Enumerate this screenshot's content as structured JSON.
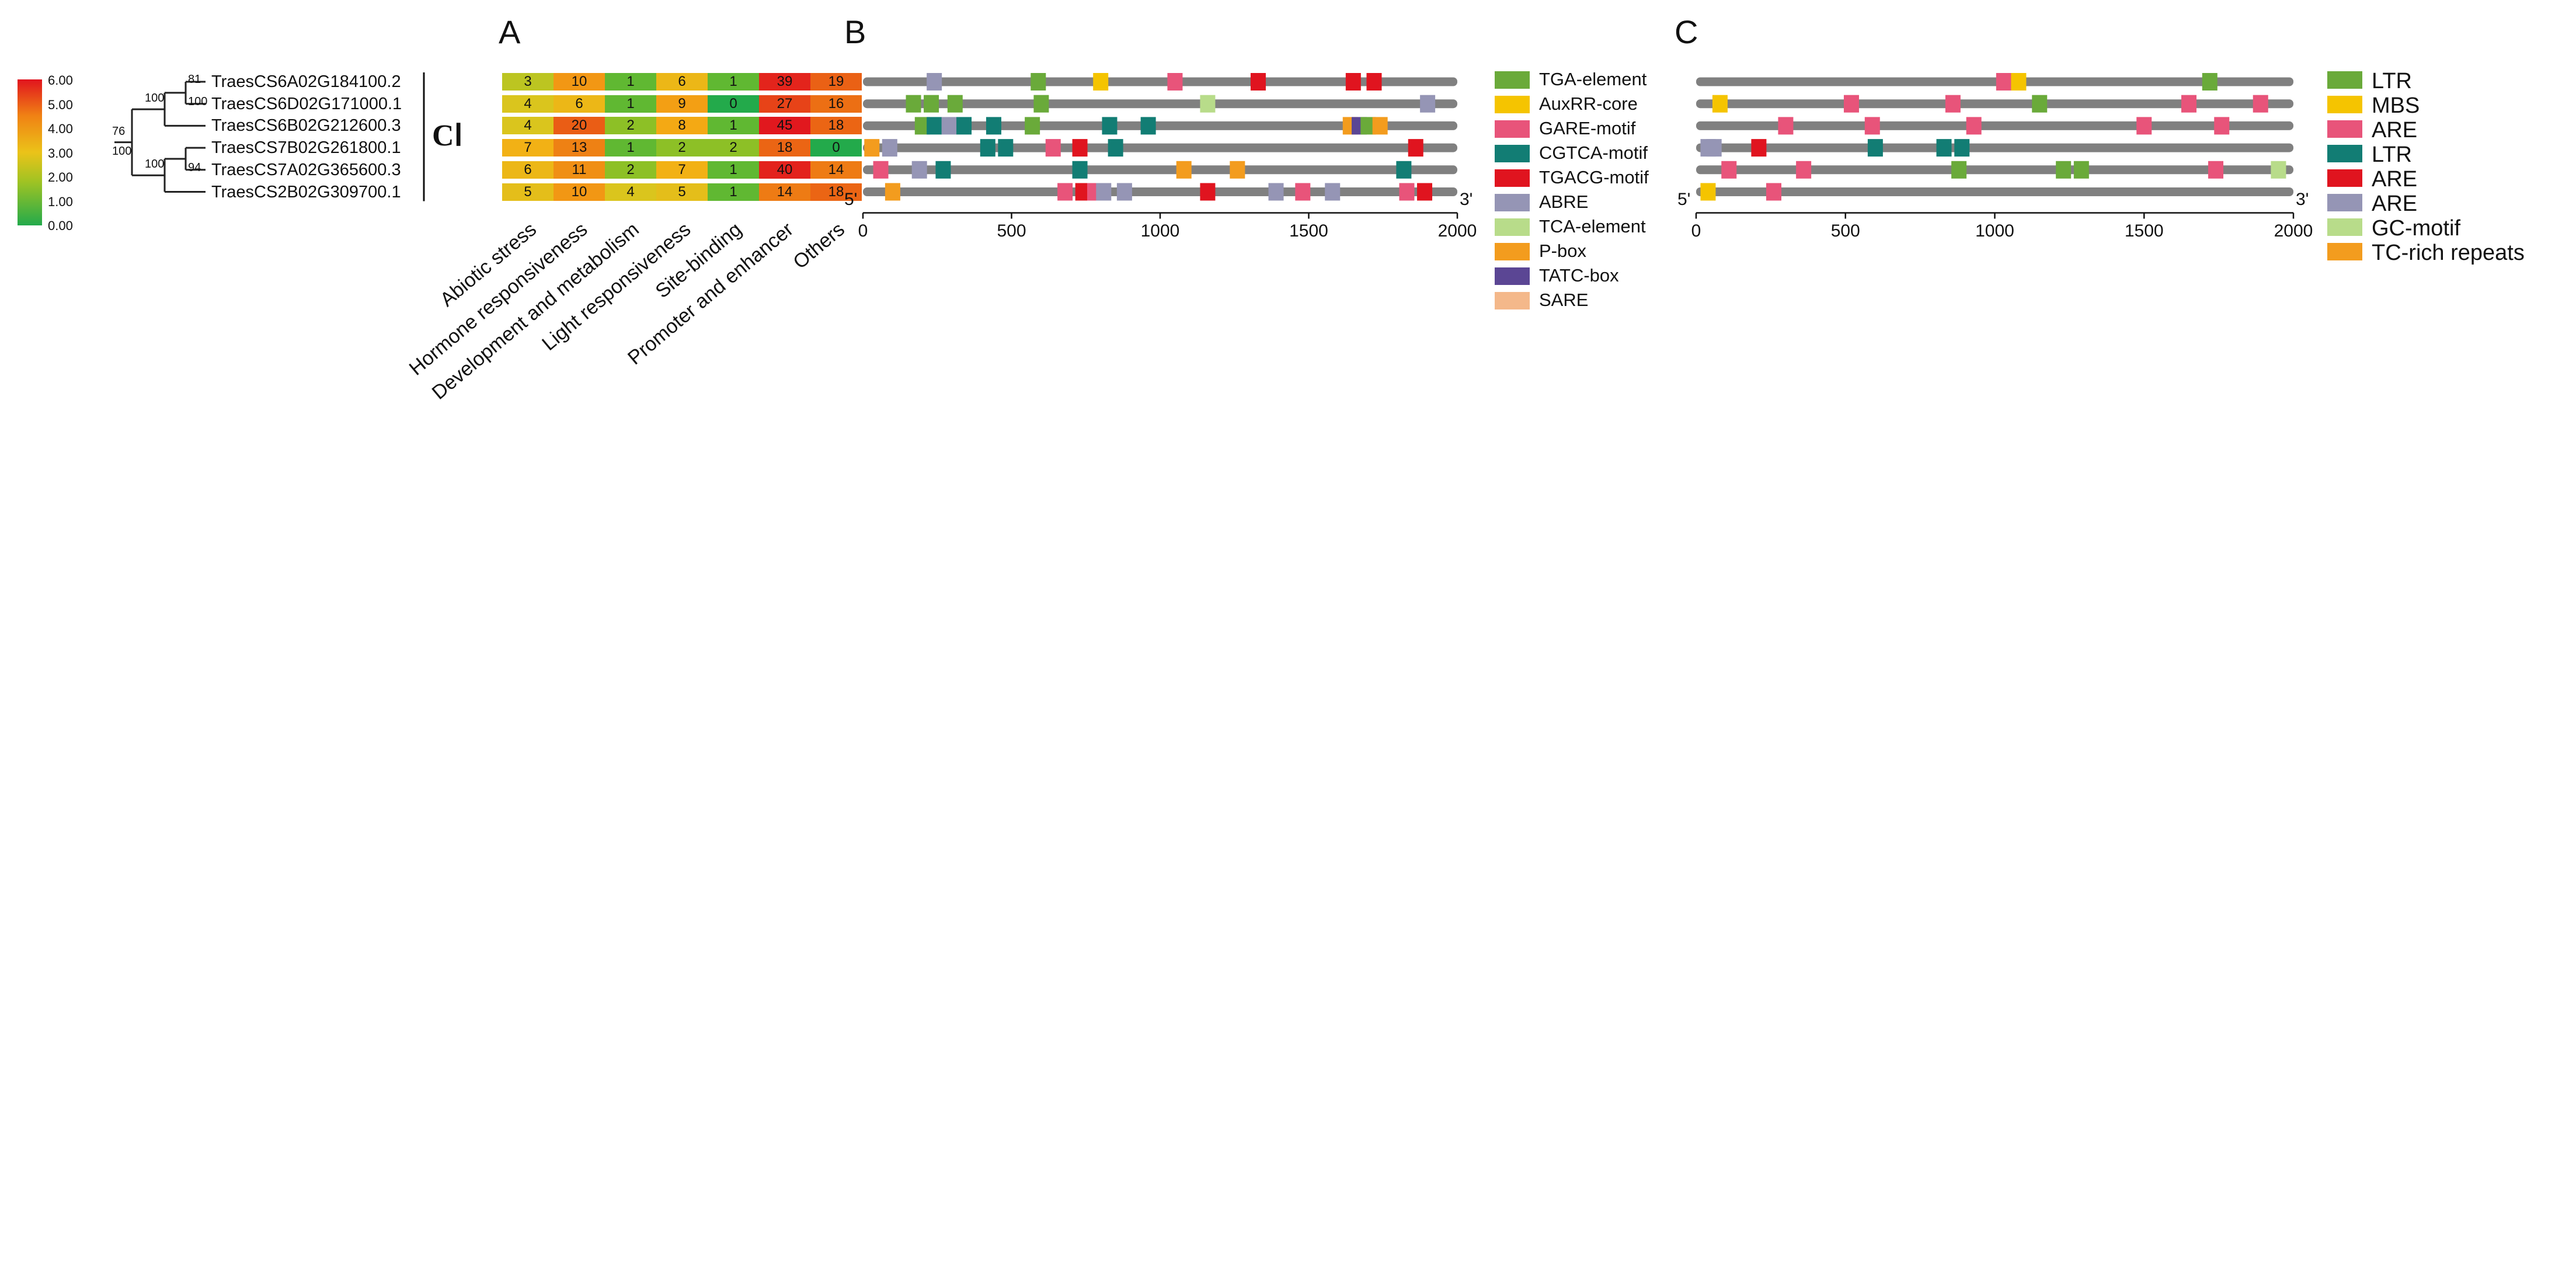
{
  "panels": {
    "a": "A",
    "b": "B",
    "c": "C"
  },
  "scale_labels": [
    "6.00",
    "5.00",
    "4.00",
    "3.00",
    "2.00",
    "1.00",
    "0.00"
  ],
  "genes": [
    "TraesCS6A02G184100.2",
    "TraesCS6D02G171000.1",
    "TraesCS6B02G212600.3",
    "TraesCS7B02G261800.1",
    "TraesCS7A02G365600.3",
    "TraesCS2B02G309700.1"
  ],
  "bootstrap": [
    "81",
    "100",
    "100",
    "94",
    "100",
    "76",
    "100"
  ],
  "clades": [
    "CⅠ"
  ],
  "heatmap": {
    "columns": [
      "Abiotic stress",
      "Hormone responsiveness",
      "Development and metabolism",
      "Light responsiveness",
      "Site-binding",
      "Promoter and enhancer",
      "Others"
    ],
    "rows": [
      [
        3,
        10,
        1,
        6,
        1,
        39,
        19
      ],
      [
        4,
        6,
        1,
        9,
        0,
        27,
        16
      ],
      [
        4,
        20,
        2,
        8,
        1,
        45,
        18
      ],
      [
        7,
        13,
        1,
        2,
        2,
        18,
        0
      ],
      [
        6,
        11,
        2,
        7,
        1,
        40,
        14
      ],
      [
        5,
        10,
        4,
        5,
        1,
        14,
        18
      ]
    ]
  },
  "axis": {
    "start": "5'",
    "end": "3'",
    "ticks": [
      "0",
      "500",
      "1000",
      "1500",
      "2000"
    ]
  },
  "chart_data": [
    {
      "type": "heatmap",
      "title": "A",
      "value_scale": [
        0,
        6
      ],
      "categories": [
        "Abiotic stress",
        "Hormone responsiveness",
        "Development and metabolism",
        "Light responsiveness",
        "Site-binding",
        "Promoter and enhancer",
        "Others"
      ],
      "rows_ref": "genes",
      "values_ref": "heatmap.rows"
    },
    {
      "type": "track",
      "title": "B",
      "xlim": [
        0,
        2000
      ],
      "legend": [
        {
          "name": "TGA-element",
          "color": "#6aaa3a"
        },
        {
          "name": "AuxRR-core",
          "color": "#f5c400"
        },
        {
          "name": "GARE-motif",
          "color": "#e8547a"
        },
        {
          "name": "CGTCA-motif",
          "color": "#127d74"
        },
        {
          "name": "TGACG-motif",
          "color": "#e0141f"
        },
        {
          "name": "ABRE",
          "color": "#9595b5"
        },
        {
          "name": "TCA-element",
          "color": "#b8dc8a"
        },
        {
          "name": "P-box",
          "color": "#f39c1e"
        },
        {
          "name": "TATC-box",
          "color": "#5b4694"
        },
        {
          "name": "SARE",
          "color": "#f4b88a"
        }
      ],
      "rows": [
        [
          [
            240,
            5
          ],
          [
            590,
            0
          ],
          [
            800,
            1
          ],
          [
            1050,
            2
          ],
          [
            1330,
            4
          ],
          [
            1650,
            4
          ],
          [
            1720,
            4
          ]
        ],
        [
          [
            170,
            0
          ],
          [
            230,
            0
          ],
          [
            310,
            0
          ],
          [
            600,
            0
          ],
          [
            1160,
            6
          ],
          [
            1900,
            5
          ]
        ],
        [
          [
            200,
            0
          ],
          [
            240,
            3
          ],
          [
            290,
            5
          ],
          [
            340,
            3
          ],
          [
            440,
            3
          ],
          [
            570,
            0
          ],
          [
            830,
            3
          ],
          [
            960,
            3
          ],
          [
            1640,
            7
          ],
          [
            1670,
            8
          ],
          [
            1700,
            0
          ],
          [
            1740,
            7
          ]
        ],
        [
          [
            30,
            7
          ],
          [
            90,
            5
          ],
          [
            420,
            3
          ],
          [
            480,
            3
          ],
          [
            640,
            2
          ],
          [
            730,
            4
          ],
          [
            850,
            3
          ],
          [
            1860,
            4
          ]
        ],
        [
          [
            60,
            2
          ],
          [
            190,
            5
          ],
          [
            270,
            3
          ],
          [
            730,
            3
          ],
          [
            1080,
            7
          ],
          [
            1260,
            7
          ],
          [
            1820,
            3
          ]
        ],
        [
          [
            100,
            7
          ],
          [
            680,
            2
          ],
          [
            740,
            4
          ],
          [
            780,
            2
          ],
          [
            810,
            5
          ],
          [
            880,
            5
          ],
          [
            1160,
            4
          ],
          [
            1390,
            5
          ],
          [
            1480,
            2
          ],
          [
            1580,
            5
          ],
          [
            1830,
            2
          ],
          [
            1890,
            4
          ]
        ]
      ]
    },
    {
      "type": "track",
      "title": "C",
      "xlim": [
        0,
        2000
      ],
      "legend": [
        {
          "name": "LTR",
          "color": "#6aaa3a"
        },
        {
          "name": "MBS",
          "color": "#f5c400"
        },
        {
          "name": "ARE",
          "color": "#e8547a"
        },
        {
          "name": "LTR",
          "color": "#127d74"
        },
        {
          "name": "ARE",
          "color": "#e0141f"
        },
        {
          "name": "ARE",
          "color": "#9595b5"
        },
        {
          "name": "GC-motif",
          "color": "#b8dc8a"
        },
        {
          "name": "TC-rich repeats",
          "color": "#f39c1e"
        }
      ],
      "rows": [
        [
          [
            1030,
            2
          ],
          [
            1080,
            1
          ],
          [
            1720,
            0
          ]
        ],
        [
          [
            80,
            1
          ],
          [
            520,
            2
          ],
          [
            860,
            2
          ],
          [
            1150,
            0
          ],
          [
            1650,
            2
          ],
          [
            1890,
            2
          ]
        ],
        [
          [
            300,
            2
          ],
          [
            590,
            2
          ],
          [
            930,
            2
          ],
          [
            1500,
            2
          ],
          [
            1760,
            2
          ]
        ],
        [
          [
            40,
            5
          ],
          [
            60,
            5
          ],
          [
            210,
            4
          ],
          [
            600,
            3
          ],
          [
            830,
            3
          ],
          [
            890,
            3
          ]
        ],
        [
          [
            110,
            2
          ],
          [
            360,
            2
          ],
          [
            880,
            0
          ],
          [
            1230,
            0
          ],
          [
            1290,
            0
          ],
          [
            1740,
            2
          ],
          [
            1950,
            6
          ]
        ],
        [
          [
            40,
            1
          ],
          [
            260,
            2
          ]
        ]
      ]
    }
  ]
}
